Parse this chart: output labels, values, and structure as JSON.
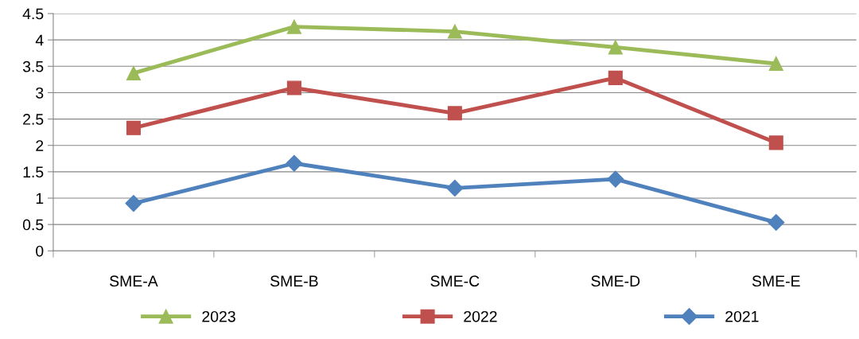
{
  "chart_data": {
    "type": "line",
    "categories": [
      "SME-A",
      "SME-B",
      "SME-C",
      "SME-D",
      "SME-E"
    ],
    "series": [
      {
        "name": "2023",
        "color": "#9bbb59",
        "marker": "triangle",
        "values": [
          3.37,
          4.25,
          4.16,
          3.86,
          3.55
        ]
      },
      {
        "name": "2022",
        "color": "#c0504d",
        "marker": "square",
        "values": [
          2.33,
          3.09,
          2.61,
          3.28,
          2.05
        ]
      },
      {
        "name": "2021",
        "color": "#4f81bd",
        "marker": "diamond",
        "values": [
          0.9,
          1.66,
          1.19,
          1.36,
          0.54
        ]
      }
    ],
    "ylim": [
      0,
      4.5
    ],
    "yticks": [
      0,
      0.5,
      1,
      1.5,
      2,
      2.5,
      3,
      3.5,
      4,
      4.5
    ],
    "grid": "y",
    "legend": "bottom",
    "line_style": "solid"
  }
}
